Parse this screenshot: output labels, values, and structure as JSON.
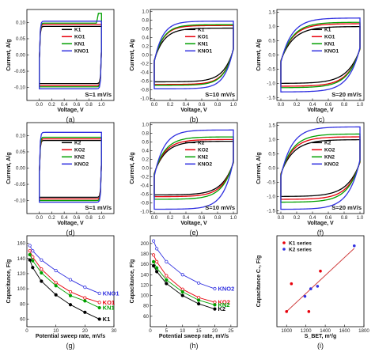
{
  "chart_data": [
    {
      "id": "a",
      "panel_label": "(a)",
      "type": "line",
      "kind": "cv",
      "xlabel": "Voltage, V",
      "ylabel": "Current, A/g",
      "xlim": [
        -0.2,
        1.2
      ],
      "ylim": [
        -0.14,
        0.14
      ],
      "xticks": [
        "0.0",
        "0.2",
        "0.4",
        "0.6",
        "0.8",
        "1.0"
      ],
      "yticks": [
        "-0.10",
        "-0.05",
        "0.00",
        "0.05",
        "0.10"
      ],
      "annotation": "S=1 mV/s",
      "legend_position": "center",
      "series": [
        {
          "name": "K1",
          "color": "#000000",
          "top": 0.088,
          "bottom": -0.088,
          "round": 0.03,
          "corner": 0
        },
        {
          "name": "KO1",
          "color": "#e8000b",
          "top": 0.094,
          "bottom": -0.094,
          "round": 0.03,
          "corner": 0
        },
        {
          "name": "KN1",
          "color": "#00a000",
          "top": 0.098,
          "bottom": -0.098,
          "round": 0.03,
          "corner": 0.025
        },
        {
          "name": "KNO1",
          "color": "#3030e0",
          "top": 0.104,
          "bottom": -0.104,
          "round": 0.03,
          "corner": 0
        }
      ]
    },
    {
      "id": "b",
      "panel_label": "(b)",
      "type": "line",
      "kind": "cv",
      "xlabel": "Voltage, V",
      "ylabel": "Current, A/g",
      "xlim": [
        -0.05,
        1.05
      ],
      "ylim": [
        -1.05,
        1.05
      ],
      "xticks": [
        "0.0",
        "0.2",
        "0.4",
        "0.6",
        "0.8",
        "1.0"
      ],
      "yticks": [
        "-1.0",
        "-0.8",
        "-0.6",
        "-0.4",
        "-0.2",
        "0.0",
        "0.2",
        "0.4",
        "0.6",
        "0.8",
        "1.0"
      ],
      "annotation": "S=10 mV/s",
      "legend_position": "center",
      "series": [
        {
          "name": "K1",
          "color": "#000000",
          "top": 0.62,
          "bottom": -0.62,
          "round": 0.35,
          "corner": 0
        },
        {
          "name": "KO1",
          "color": "#e8000b",
          "top": 0.68,
          "bottom": -0.68,
          "round": 0.32,
          "corner": 0
        },
        {
          "name": "KN1",
          "color": "#00a000",
          "top": 0.7,
          "bottom": -0.7,
          "round": 0.32,
          "corner": 0
        },
        {
          "name": "KNO1",
          "color": "#3030e0",
          "top": 0.78,
          "bottom": -0.78,
          "round": 0.3,
          "corner": 0
        }
      ]
    },
    {
      "id": "c",
      "panel_label": "(c)",
      "type": "line",
      "kind": "cv",
      "xlabel": "Voltage, V",
      "ylabel": "Current, A/g",
      "xlim": [
        -0.05,
        1.05
      ],
      "ylim": [
        -1.6,
        1.6
      ],
      "xticks": [
        "0.0",
        "0.2",
        "0.4",
        "0.6",
        "0.8",
        "1.0"
      ],
      "yticks": [
        "-1.5",
        "-1.0",
        "-0.5",
        "0.0",
        "0.5",
        "1.0",
        "1.5"
      ],
      "annotation": "S=20 mV/s",
      "legend_position": "center",
      "series": [
        {
          "name": "K1",
          "color": "#000000",
          "top": 1.0,
          "bottom": -1.0,
          "round": 0.45,
          "corner": 0
        },
        {
          "name": "KO1",
          "color": "#e8000b",
          "top": 1.1,
          "bottom": -1.1,
          "round": 0.42,
          "corner": 0
        },
        {
          "name": "KN1",
          "color": "#00a000",
          "top": 1.15,
          "bottom": -1.15,
          "round": 0.42,
          "corner": 0
        },
        {
          "name": "KNO1",
          "color": "#3030e0",
          "top": 1.3,
          "bottom": -1.3,
          "round": 0.4,
          "corner": 0
        }
      ]
    },
    {
      "id": "d",
      "panel_label": "(d)",
      "type": "line",
      "kind": "cv",
      "xlabel": "Voltage, V",
      "ylabel": "Current, A/g",
      "xlim": [
        -0.2,
        1.2
      ],
      "ylim": [
        -0.14,
        0.14
      ],
      "xticks": [
        "0.0",
        "0.2",
        "0.4",
        "0.6",
        "0.8",
        "1.0"
      ],
      "yticks": [
        "-0.10",
        "-0.05",
        "0.00",
        "0.05",
        "0.10"
      ],
      "annotation": "S=1 mV/s",
      "legend_position": "center",
      "series": [
        {
          "name": "K2",
          "color": "#000000",
          "top": 0.085,
          "bottom": -0.09,
          "round": 0.03,
          "corner": 0
        },
        {
          "name": "KO2",
          "color": "#e8000b",
          "top": 0.09,
          "bottom": -0.095,
          "round": 0.03,
          "corner": 0
        },
        {
          "name": "KN2",
          "color": "#00a000",
          "top": 0.095,
          "bottom": -0.1,
          "round": 0.03,
          "corner": 0
        },
        {
          "name": "KNO2",
          "color": "#3030e0",
          "top": 0.11,
          "bottom": -0.105,
          "round": 0.03,
          "corner": 0
        }
      ]
    },
    {
      "id": "e",
      "panel_label": "(e)",
      "type": "line",
      "kind": "cv",
      "xlabel": "Voltage, V",
      "ylabel": "Current, A/g",
      "xlim": [
        -0.05,
        1.05
      ],
      "ylim": [
        -1.05,
        1.05
      ],
      "xticks": [
        "0.0",
        "0.2",
        "0.4",
        "0.6",
        "0.8",
        "1.0"
      ],
      "yticks": [
        "-1.0",
        "-0.8",
        "-0.6",
        "-0.4",
        "-0.2",
        "0.0",
        "0.2",
        "0.4",
        "0.6",
        "0.8",
        "1.0"
      ],
      "annotation": "S=10 mV/s",
      "legend_position": "center",
      "series": [
        {
          "name": "K2",
          "color": "#000000",
          "top": 0.62,
          "bottom": -0.62,
          "round": 0.4,
          "corner": 0
        },
        {
          "name": "KO2",
          "color": "#e8000b",
          "top": 0.66,
          "bottom": -0.66,
          "round": 0.38,
          "corner": 0
        },
        {
          "name": "KN2",
          "color": "#00a000",
          "top": 0.72,
          "bottom": -0.72,
          "round": 0.38,
          "corner": 0
        },
        {
          "name": "KNO2",
          "color": "#3030e0",
          "top": 0.88,
          "bottom": -0.95,
          "round": 0.35,
          "corner": 0
        }
      ]
    },
    {
      "id": "f",
      "panel_label": "(f)",
      "type": "line",
      "kind": "cv",
      "xlabel": "Voltage, V",
      "ylabel": "Current, A/g",
      "xlim": [
        -0.05,
        1.05
      ],
      "ylim": [
        -1.6,
        1.6
      ],
      "xticks": [
        "0.0",
        "0.2",
        "0.4",
        "0.6",
        "0.8",
        "1.0"
      ],
      "yticks": [
        "-1.5",
        "-1.0",
        "-0.5",
        "0.0",
        "0.5",
        "1.0",
        "1.5"
      ],
      "annotation": "S=20 mV/s",
      "legend_position": "center",
      "series": [
        {
          "name": "K2",
          "color": "#000000",
          "top": 1.0,
          "bottom": -1.0,
          "round": 0.45,
          "corner": 0
        },
        {
          "name": "KO2",
          "color": "#e8000b",
          "top": 1.1,
          "bottom": -1.1,
          "round": 0.42,
          "corner": 0
        },
        {
          "name": "KN2",
          "color": "#00a000",
          "top": 1.2,
          "bottom": -1.2,
          "round": 0.42,
          "corner": 0
        },
        {
          "name": "KNO2",
          "color": "#3030e0",
          "top": 1.45,
          "bottom": -1.45,
          "round": 0.4,
          "corner": 0
        }
      ]
    },
    {
      "id": "g",
      "panel_label": "(g)",
      "type": "line",
      "kind": "decay",
      "xlabel": "Potential sweep rate, mV/s",
      "ylabel": "Capacitance, F/g",
      "xlim": [
        0,
        30
      ],
      "ylim": [
        50,
        170
      ],
      "xticks": [
        "0",
        "10",
        "20",
        "30"
      ],
      "xtick_values": [
        0,
        10,
        20,
        30
      ],
      "yticks": [
        "60",
        "80",
        "100",
        "120",
        "140",
        "160"
      ],
      "ytick_values": [
        60,
        80,
        100,
        120,
        140,
        160
      ],
      "legend_position": "right",
      "series": [
        {
          "name": "KNO1",
          "color": "#3030e0",
          "marker": "circle-open",
          "x": [
            1,
            2,
            5,
            10,
            15,
            20,
            25
          ],
          "y": [
            157,
            150,
            138,
            124,
            112,
            102,
            94
          ]
        },
        {
          "name": "KO1",
          "color": "#e8000b",
          "marker": "circle-open",
          "x": [
            1,
            2,
            5,
            10,
            15,
            20,
            25
          ],
          "y": [
            150,
            142,
            126,
            108,
            96,
            88,
            82
          ]
        },
        {
          "name": "KN1",
          "color": "#00a000",
          "marker": "circle",
          "x": [
            1,
            2,
            5,
            10,
            15,
            20,
            25
          ],
          "y": [
            145,
            137,
            121,
            104,
            91,
            84,
            75
          ]
        },
        {
          "name": "K1",
          "color": "#000000",
          "marker": "circle",
          "x": [
            1,
            2,
            5,
            10,
            15,
            20,
            25
          ],
          "y": [
            138,
            128,
            110,
            92,
            79,
            69,
            60
          ]
        }
      ]
    },
    {
      "id": "h",
      "panel_label": "(h)",
      "type": "line",
      "kind": "decay",
      "xlabel": "Potential sweep rate, mV/s",
      "ylabel": "Capacitance, F/g",
      "xlim": [
        0,
        27
      ],
      "ylim": [
        40,
        215
      ],
      "xticks": [
        "0",
        "5",
        "10",
        "15",
        "20",
        "25"
      ],
      "xtick_values": [
        0,
        5,
        10,
        15,
        20,
        25
      ],
      "yticks": [
        "60",
        "80",
        "100",
        "120",
        "140",
        "160",
        "180",
        "200"
      ],
      "ytick_values": [
        60,
        80,
        100,
        120,
        140,
        160,
        180,
        200
      ],
      "legend_position": "right",
      "series": [
        {
          "name": "KNO2",
          "color": "#3030e0",
          "marker": "circle-open",
          "x": [
            1,
            2,
            5,
            10,
            15,
            20
          ],
          "y": [
            205,
            190,
            165,
            140,
            124,
            113
          ]
        },
        {
          "name": "KO2",
          "color": "#e8000b",
          "marker": "circle-open",
          "x": [
            1,
            2,
            5,
            10,
            15,
            20
          ],
          "y": [
            178,
            165,
            138,
            112,
            96,
            87
          ]
        },
        {
          "name": "KN2",
          "color": "#00a000",
          "marker": "circle",
          "x": [
            1,
            2,
            5,
            10,
            15,
            20
          ],
          "y": [
            165,
            153,
            130,
            107,
            91,
            82
          ]
        },
        {
          "name": "K2",
          "color": "#000000",
          "marker": "circle",
          "x": [
            1,
            2,
            5,
            10,
            15,
            20
          ],
          "y": [
            157,
            146,
            123,
            100,
            84,
            74
          ]
        }
      ]
    },
    {
      "id": "i",
      "panel_label": "(i)",
      "type": "scatter",
      "kind": "scatter",
      "xlabel": "S_BET, m²/g",
      "ylabel": "Capacitance C₁, F/g",
      "xlim": [
        900,
        1800
      ],
      "ylim": [
        58,
        94
      ],
      "xticks": [
        "1000",
        "1200",
        "1400",
        "1600",
        "1800"
      ],
      "xtick_values": [
        1000,
        1200,
        1400,
        1600,
        1800
      ],
      "yticks": [],
      "ytick_values": [],
      "legend_position": "top-left",
      "fit_line": {
        "color": "#d04040",
        "x": [
          1000,
          1700
        ],
        "y": [
          64,
          89
        ]
      },
      "series": [
        {
          "name": "K1 series",
          "color": "#e8000b",
          "marker": "circle",
          "x": [
            1000,
            1050,
            1230,
            1350
          ],
          "y": [
            64,
            75,
            64,
            80
          ]
        },
        {
          "name": "K2 series",
          "color": "#3030e0",
          "marker": "circle",
          "x": [
            1190,
            1250,
            1320,
            1700
          ],
          "y": [
            70,
            73,
            74,
            90
          ]
        }
      ]
    }
  ]
}
